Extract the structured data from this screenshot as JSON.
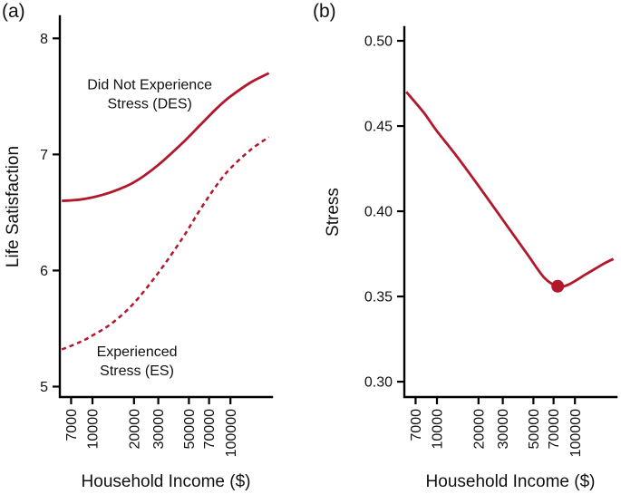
{
  "figure": {
    "panel_a_tag": "(a)",
    "panel_b_tag": "(b)"
  },
  "colors": {
    "line": "#b2182b",
    "axis": "#000000",
    "text": "#111111"
  },
  "chart_data": [
    {
      "type": "line",
      "panel": "a",
      "title": "",
      "xlabel": "Household Income ($)",
      "ylabel": "Life Satisfaction",
      "x_scale": "log",
      "xlim": [
        5800,
        200000
      ],
      "ylim": [
        4.91,
        8.19
      ],
      "x_ticks": [
        7000,
        10000,
        20000,
        30000,
        50000,
        70000,
        100000
      ],
      "x_tick_labels": [
        "7000",
        "10000",
        "20000",
        "30000",
        "50000",
        "70000",
        "100000"
      ],
      "y_ticks": [
        5,
        6,
        7,
        8
      ],
      "y_tick_labels": [
        "5",
        "6",
        "7",
        "8"
      ],
      "grid": false,
      "legend": "none (in-plot annotations)",
      "series": [
        {
          "name": "Did Not Experience Stress (DES)",
          "line_style": "solid",
          "x": [
            6000,
            8000,
            10000,
            14000,
            20000,
            30000,
            45000,
            60000,
            80000,
            100000,
            140000,
            190000
          ],
          "values": [
            6.6,
            6.61,
            6.63,
            6.68,
            6.76,
            6.91,
            7.1,
            7.25,
            7.4,
            7.5,
            7.62,
            7.7
          ]
        },
        {
          "name": "Experienced Stress (ES)",
          "line_style": "dashed",
          "x": [
            6000,
            8000,
            10000,
            14000,
            20000,
            30000,
            45000,
            60000,
            80000,
            100000,
            140000,
            190000
          ],
          "values": [
            5.32,
            5.38,
            5.44,
            5.55,
            5.72,
            5.98,
            6.28,
            6.52,
            6.74,
            6.88,
            7.04,
            7.15
          ]
        }
      ],
      "annotations": [
        {
          "lines": [
            "Did Not Experience",
            "Stress (DES)"
          ],
          "x": 26000,
          "y": 7.6
        },
        {
          "lines": [
            "Experienced",
            "Stress (ES)"
          ],
          "x": 21000,
          "y": 5.3
        }
      ]
    },
    {
      "type": "line",
      "panel": "b",
      "title": "",
      "xlabel": "Household Income ($)",
      "ylabel": "Stress",
      "x_scale": "log",
      "xlim": [
        5800,
        200000
      ],
      "ylim": [
        0.291,
        0.508
      ],
      "x_ticks": [
        7000,
        10000,
        20000,
        30000,
        50000,
        70000,
        100000
      ],
      "x_tick_labels": [
        "7000",
        "10000",
        "20000",
        "30000",
        "50000",
        "70000",
        "100000"
      ],
      "y_ticks": [
        0.3,
        0.35,
        0.4,
        0.45,
        0.5
      ],
      "y_tick_labels": [
        "0.30",
        "0.35",
        "0.40",
        "0.45",
        "0.50"
      ],
      "grid": false,
      "series": [
        {
          "name": "Stress",
          "line_style": "solid",
          "x": [
            6000,
            8000,
            10000,
            14000,
            20000,
            30000,
            45000,
            60000,
            75000,
            90000,
            120000,
            160000,
            190000
          ],
          "values": [
            0.47,
            0.458,
            0.447,
            0.432,
            0.415,
            0.395,
            0.375,
            0.361,
            0.356,
            0.357,
            0.363,
            0.369,
            0.372
          ]
        }
      ],
      "marker_point": {
        "x": 75000,
        "y": 0.356
      }
    }
  ]
}
